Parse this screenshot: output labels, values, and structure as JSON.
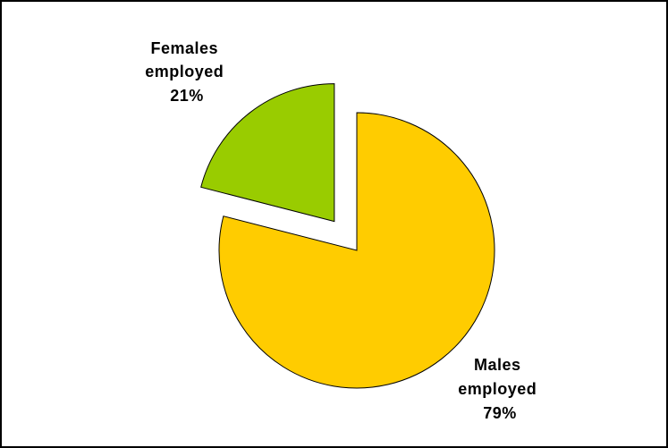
{
  "chart_data": {
    "type": "pie",
    "slices": [
      {
        "label": "Females employed",
        "label_lines": [
          "Females",
          "employed"
        ],
        "value": 21,
        "value_text": "21%",
        "color": "#99cc00",
        "exploded": true
      },
      {
        "label": "Males employed",
        "label_lines": [
          "Males",
          "employed"
        ],
        "value": 79,
        "value_text": "79%",
        "color": "#ffcc00",
        "exploded": false
      }
    ],
    "legend": "none"
  }
}
